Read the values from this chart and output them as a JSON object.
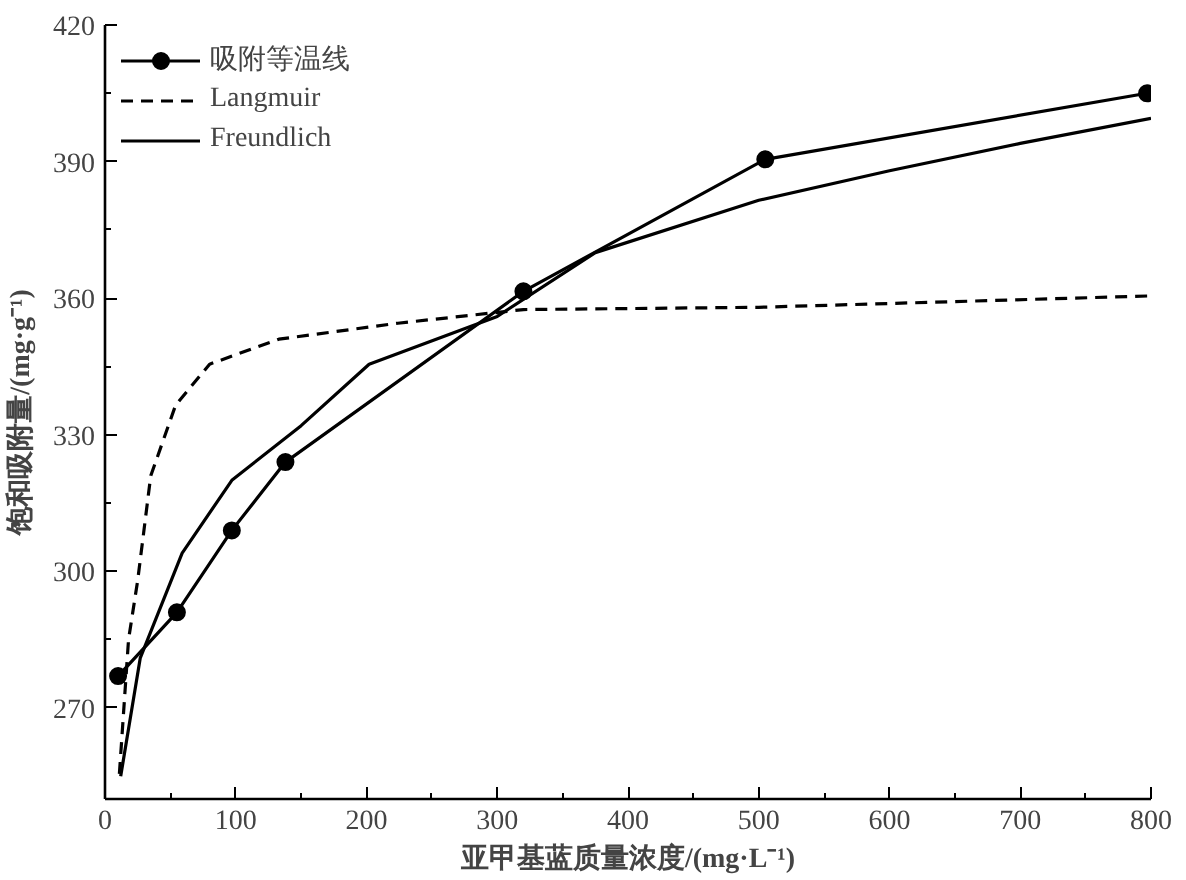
{
  "chart_data": {
    "type": "line",
    "xlabel": "亚甲基蓝质量浓度/(mg·L⁻¹)",
    "ylabel": "饱和吸附量/(mg·g⁻¹)",
    "xlim": [
      0,
      800
    ],
    "ylim": [
      250,
      420
    ],
    "xticks": [
      0,
      100,
      200,
      300,
      400,
      500,
      600,
      700,
      800
    ],
    "yticks": [
      270,
      300,
      330,
      360,
      390,
      420
    ],
    "grid": false,
    "legend": "top left",
    "series": [
      {
        "name": "吸附等温线",
        "color": "#000000",
        "marker": "circle",
        "line_style": "solid",
        "x": [
          10,
          55,
          97,
          138,
          320,
          505,
          797
        ],
        "values": [
          277,
          291,
          309,
          324,
          361.5,
          390.5,
          405
        ]
      },
      {
        "name": "Langmuir",
        "color": "#000000",
        "marker": "none",
        "line_style": "dashed",
        "x": [
          11,
          18,
          25,
          35,
          54,
          80,
          133,
          224,
          320,
          500,
          800
        ],
        "values": [
          255.5,
          285,
          298,
          321,
          336.5,
          345.5,
          351,
          354.5,
          357.5,
          358,
          360.5
        ]
      },
      {
        "name": "Freundlich",
        "color": "#000000",
        "marker": "none",
        "line_style": "solid",
        "x": [
          12,
          27,
          59,
          97,
          150,
          202,
          300,
          375,
          500,
          600,
          700,
          800
        ],
        "values": [
          255,
          281,
          304,
          320,
          332,
          345.5,
          356,
          370,
          381.5,
          388,
          394,
          399.5
        ]
      }
    ]
  }
}
